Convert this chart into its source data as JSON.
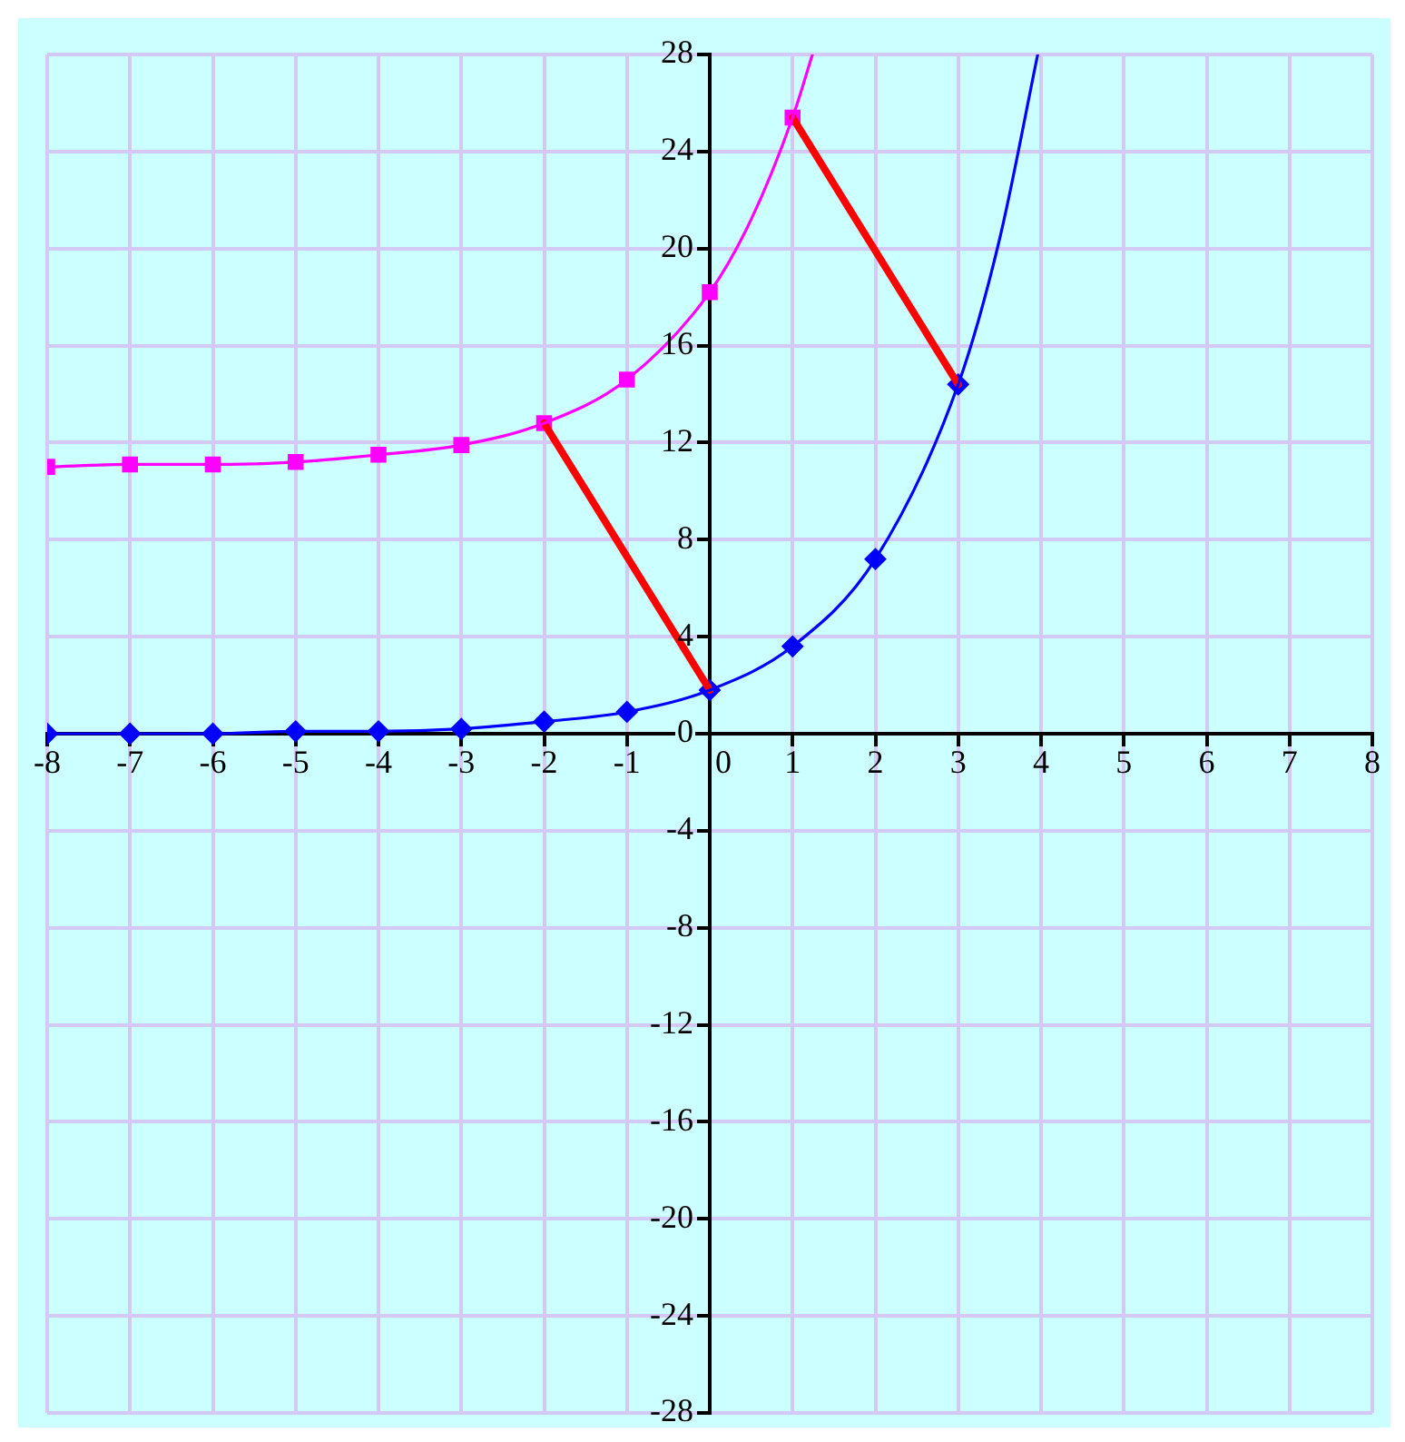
{
  "chart_data": {
    "type": "scatter",
    "xlim": [
      -8,
      8
    ],
    "xticks": [
      -8,
      -7,
      -6,
      -5,
      -4,
      -3,
      -2,
      -1,
      0,
      1,
      2,
      3,
      4,
      5,
      6,
      7,
      8
    ],
    "ylim": [
      -28,
      28
    ],
    "yticks": [
      -28,
      -24,
      -20,
      -16,
      -12,
      -8,
      -4,
      0,
      4,
      8,
      12,
      16,
      20,
      24,
      28
    ],
    "grid": true,
    "legend": false,
    "series": [
      {
        "type": "line",
        "marker": "none",
        "color": "#ff00ff",
        "x": [
          -8,
          -7,
          -6,
          -5,
          -4,
          -3,
          -2,
          -1,
          0,
          0.5,
          1,
          1.24
        ],
        "values": [
          11.0,
          11.1,
          11.1,
          11.2,
          11.5,
          11.9,
          12.8,
          14.6,
          18.2,
          21.2,
          25.4,
          28
        ]
      },
      {
        "type": "line",
        "marker": "none",
        "color": "#0000ff",
        "x": [
          -8,
          -7,
          -6,
          -5,
          -4,
          -3,
          -2,
          -1,
          0,
          1,
          2,
          3,
          3.5,
          3.96
        ],
        "values": [
          0.0,
          0.0,
          0.0,
          0.1,
          0.1,
          0.2,
          0.5,
          0.9,
          1.8,
          3.6,
          7.2,
          14.4,
          20.4,
          28
        ]
      },
      {
        "type": "line",
        "marker": "none",
        "color": "#ff0000",
        "x": [
          -2,
          0
        ],
        "values": [
          12.8,
          1.8
        ]
      },
      {
        "type": "line",
        "marker": "none",
        "color": "#ff0000",
        "x": [
          1,
          3
        ],
        "values": [
          25.4,
          14.4
        ]
      },
      {
        "type": "scatter",
        "marker": "square",
        "color": "#ff00ff",
        "x": [
          -8,
          -7,
          -6,
          -5,
          -4,
          -3,
          -2,
          -1,
          0,
          1
        ],
        "values": [
          11.0,
          11.1,
          11.1,
          11.2,
          11.5,
          11.9,
          12.8,
          14.6,
          18.2,
          25.4
        ]
      },
      {
        "type": "scatter",
        "marker": "diamond",
        "color": "#0000ff",
        "x": [
          -8,
          -7,
          -6,
          -5,
          -4,
          -3,
          -2,
          -1,
          0,
          1,
          2,
          3
        ],
        "values": [
          0.0,
          0.0,
          0.0,
          0.1,
          0.1,
          0.2,
          0.5,
          0.9,
          1.8,
          3.6,
          7.2,
          14.4
        ]
      }
    ]
  }
}
